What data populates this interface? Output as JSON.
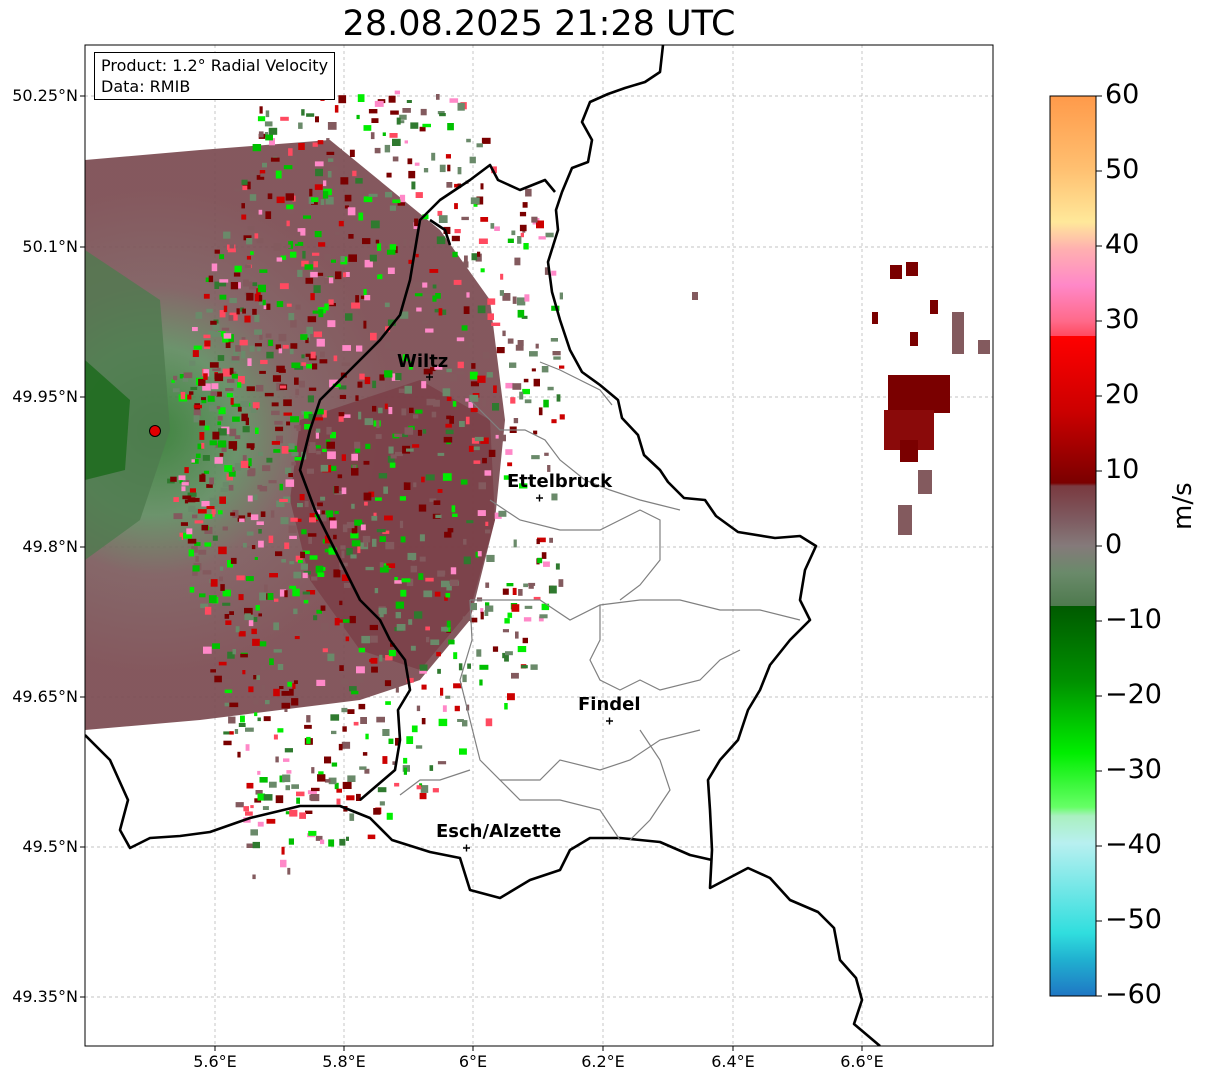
{
  "title": "28.08.2025 21:28 UTC",
  "info": {
    "product": "Product: 1.2° Radial Velocity",
    "source": "Data: RMIB"
  },
  "lat_ticks": [
    "50.25°N",
    "50.1°N",
    "49.95°N",
    "49.8°N",
    "49.65°N",
    "49.5°N",
    "49.35°N"
  ],
  "lon_ticks": [
    "5.6°E",
    "5.8°E",
    "6°E",
    "6.2°E",
    "6.4°E",
    "6.6°E"
  ],
  "colorbar": {
    "label": "m/s",
    "ticks": [
      "60",
      "50",
      "40",
      "30",
      "20",
      "10",
      "0",
      "−10",
      "−20",
      "−30",
      "−40",
      "−50",
      "−60"
    ]
  },
  "cities": [
    {
      "name": "Wiltz"
    },
    {
      "name": "Ettelbruck"
    },
    {
      "name": "Findel"
    },
    {
      "name": "Esch/Alzette"
    }
  ],
  "colors": {
    "border": "#000000",
    "canton": "#808080",
    "radar_site": "#e00000"
  }
}
